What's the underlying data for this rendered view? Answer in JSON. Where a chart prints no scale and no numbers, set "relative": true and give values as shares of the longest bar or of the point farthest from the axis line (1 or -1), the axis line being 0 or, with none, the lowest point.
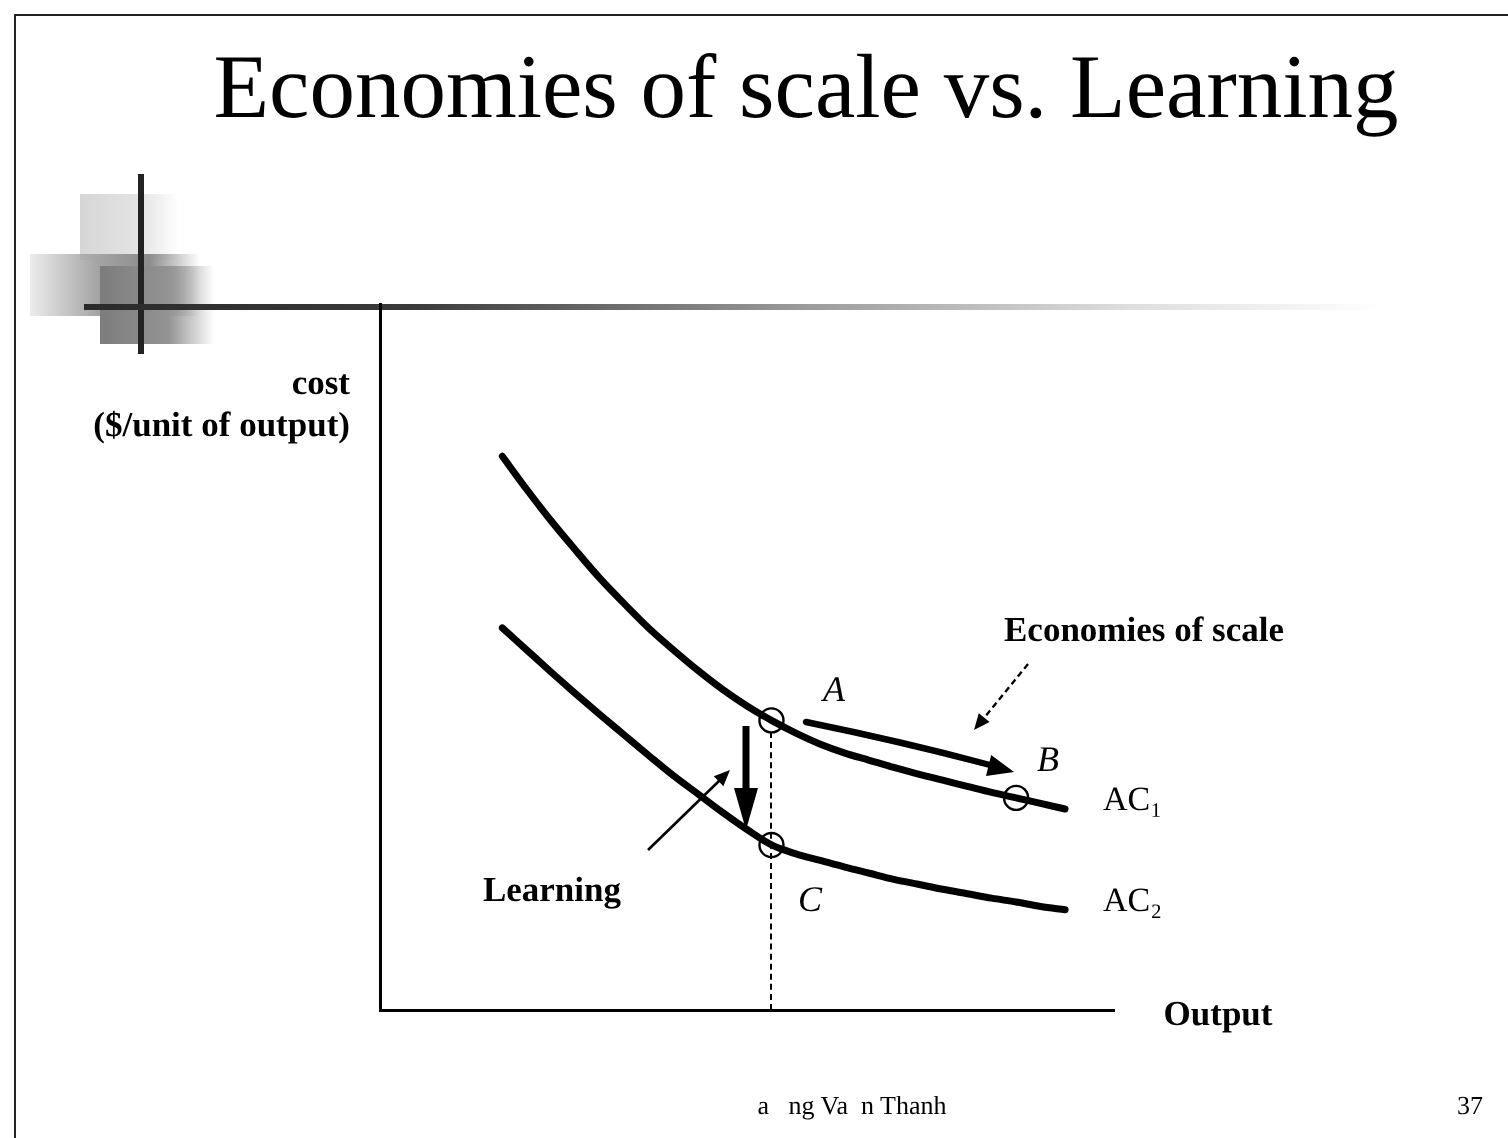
{
  "chart_data": {
    "type": "line",
    "title": "Economies of scale vs. Learning",
    "xlabel": "Output",
    "ylabel": "cost\n($/unit of output)",
    "relative": true,
    "categories": [
      null,
      null,
      null,
      null,
      null,
      null,
      null,
      null,
      null,
      null,
      null,
      null,
      null,
      null,
      null,
      null,
      null,
      null,
      null,
      null,
      null,
      null,
      null,
      null,
      null,
      null,
      null,
      null,
      null,
      null,
      null
    ],
    "series": [
      {
        "name": "AC₁",
        "color": "#000000",
        "values": [
          null,
          null,
          null,
          null,
          null,
          1,
          0.94,
          0.883,
          0.83,
          0.779,
          0.733,
          0.689,
          0.65,
          0.613,
          0.579,
          0.549,
          0.523,
          0.5,
          0.48,
          0.464,
          0.451,
          0.438,
          0.426,
          0.415,
          0.404,
          0.393,
          0.383,
          0.373,
          0.363,
          null,
          null
        ]
      },
      {
        "name": "AC₂",
        "color": "#000000",
        "values": [
          null,
          null,
          null,
          null,
          null,
          0.69,
          0.65,
          0.61,
          0.571,
          0.533,
          0.496,
          0.459,
          0.423,
          0.39,
          0.357,
          0.326,
          0.298,
          0.282,
          0.27,
          0.258,
          0.247,
          0.236,
          0.227,
          0.218,
          0.21,
          0.202,
          0.195,
          0.187,
          0.181,
          null,
          null
        ]
      },
      {
        "marker": "circle",
        "color": "#000000",
        "values": [
          null,
          null,
          null,
          null,
          null,
          null,
          null,
          null,
          null,
          null,
          null,
          null,
          null,
          null,
          null,
          null,
          0.523,
          null,
          null,
          null,
          null,
          null,
          null,
          null,
          null,
          null,
          0.383,
          null,
          null,
          null,
          null
        ]
      },
      {
        "marker": "circle",
        "color": "#000000",
        "values": [
          null,
          null,
          null,
          null,
          null,
          null,
          null,
          null,
          null,
          null,
          null,
          null,
          null,
          null,
          null,
          null,
          0.298,
          null,
          null,
          null,
          null,
          null,
          null,
          null,
          null,
          null,
          null,
          null,
          null,
          null,
          null
        ]
      }
    ],
    "annotations": [
      "A",
      "B",
      "C",
      "Economies of scale",
      "Learning",
      "a   ng Va  n Thanh",
      "37"
    ]
  }
}
